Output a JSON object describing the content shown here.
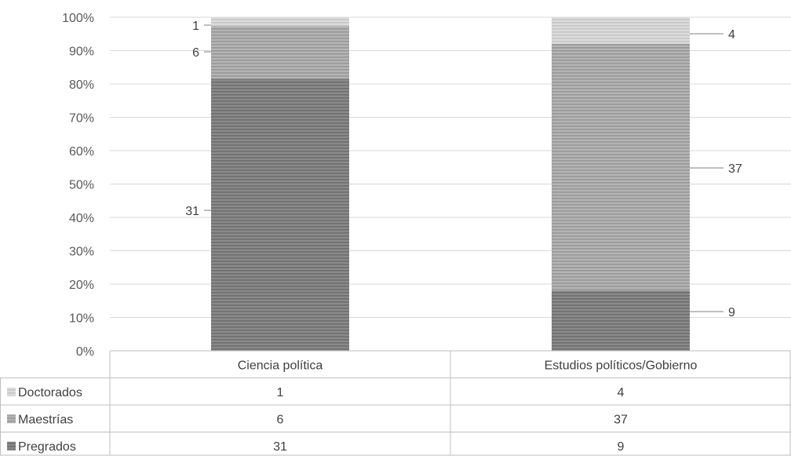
{
  "chart_data": {
    "type": "bar",
    "stacked": "percent",
    "categories": [
      "Ciencia política",
      "Estudios políticos/Gobierno"
    ],
    "series": [
      {
        "name": "Pregrados",
        "values": [
          31,
          9
        ],
        "color": "#7f7f7f"
      },
      {
        "name": "Maestrías",
        "values": [
          6,
          37
        ],
        "color": "#a6a6a6"
      },
      {
        "name": "Doctorados",
        "values": [
          1,
          4
        ],
        "color": "#d0d0d0"
      }
    ],
    "table_row_order": [
      "Doctorados",
      "Maestrías",
      "Pregrados"
    ],
    "yticks": [
      "0%",
      "10%",
      "20%",
      "30%",
      "40%",
      "50%",
      "60%",
      "70%",
      "80%",
      "90%",
      "100%"
    ],
    "ylim": [
      0,
      100
    ],
    "grid": true,
    "legend": "data-table"
  }
}
